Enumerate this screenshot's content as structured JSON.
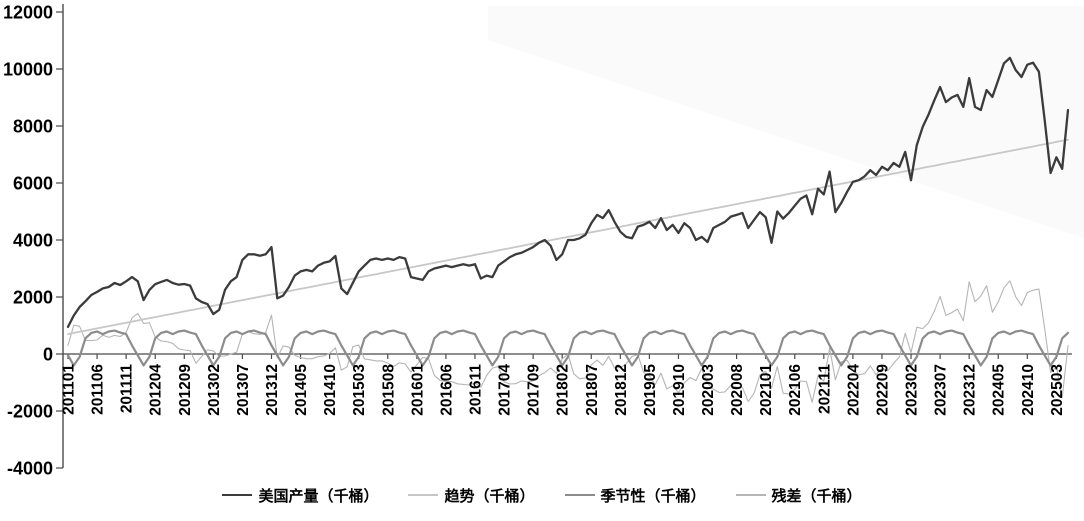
{
  "chart_data": {
    "type": "line",
    "title": "",
    "x_unit": "month (YYYYMM)",
    "x_start": "201101",
    "x_end": "202505",
    "points_count": 173,
    "x_tick_every_months": 5,
    "x_tick_labels": [
      "201101",
      "201106",
      "201111",
      "201204",
      "201209",
      "201302",
      "201307",
      "201312",
      "201405",
      "201410",
      "201503",
      "201508",
      "201601",
      "201606",
      "201611",
      "201704",
      "201709",
      "201802",
      "201807",
      "201812",
      "201905",
      "201910",
      "202003",
      "202008",
      "202101",
      "202106",
      "202111",
      "202204",
      "202209",
      "202302",
      "202307",
      "202312",
      "202405",
      "202410",
      "202503"
    ],
    "y_ticks": [
      12000,
      10000,
      8000,
      6000,
      4000,
      2000,
      0,
      -2000,
      -4000
    ],
    "ylim": [
      -4000,
      12000
    ],
    "grid": false,
    "legend_position": "bottom-center",
    "axis_color": "#4a4a4a",
    "tick_label_color": "#000000",
    "series": [
      {
        "id": "production",
        "name": "美国产量（千桶）",
        "color": "#3b3b3b",
        "width": 2.3,
        "values": [
          950,
          1350,
          1650,
          1850,
          2070,
          2180,
          2300,
          2350,
          2490,
          2420,
          2550,
          2700,
          2550,
          1890,
          2250,
          2450,
          2530,
          2600,
          2490,
          2430,
          2455,
          2400,
          1950,
          1825,
          1750,
          1400,
          1550,
          2250,
          2550,
          2700,
          3300,
          3500,
          3500,
          3450,
          3500,
          3750,
          1950,
          2050,
          2350,
          2750,
          2900,
          2950,
          2900,
          3100,
          3200,
          3250,
          3440,
          2300,
          2100,
          2500,
          2900,
          3100,
          3300,
          3350,
          3300,
          3350,
          3300,
          3400,
          3350,
          2700,
          2650,
          2600,
          2900,
          3000,
          3050,
          3100,
          3050,
          3100,
          3150,
          3100,
          3150,
          2650,
          2750,
          2700,
          3100,
          3250,
          3400,
          3500,
          3550,
          3650,
          3750,
          3900,
          4000,
          3800,
          3300,
          3500,
          4000,
          4000,
          4060,
          4180,
          4590,
          4880,
          4770,
          5050,
          4640,
          4290,
          4110,
          4060,
          4470,
          4530,
          4640,
          4420,
          4770,
          4350,
          4530,
          4250,
          4590,
          4420,
          4000,
          4110,
          3930,
          4420,
          4530,
          4640,
          4820,
          4880,
          4950,
          4420,
          4700,
          4980,
          4800,
          3900,
          5000,
          4750,
          4950,
          5200,
          5450,
          5560,
          4900,
          5800,
          5600,
          6400,
          4980,
          5300,
          5690,
          6040,
          6100,
          6230,
          6450,
          6280,
          6570,
          6450,
          6700,
          6570,
          7090,
          6100,
          7330,
          7970,
          8400,
          8900,
          9370,
          8840,
          9000,
          9090,
          8670,
          9680,
          8670,
          8560,
          9260,
          9020,
          9610,
          10200,
          10390,
          9960,
          9720,
          10150,
          10220,
          9900,
          8200,
          6350,
          6900,
          6500,
          8560
        ]
      },
      {
        "id": "trend",
        "name": "趋势（千桶）",
        "color": "#c7c7c7",
        "width": 1.8,
        "values": [
          700,
          740,
          779,
          819,
          859,
          898,
          938,
          978,
          1017,
          1057,
          1097,
          1136,
          1176,
          1216,
          1255,
          1295,
          1334,
          1374,
          1414,
          1453,
          1493,
          1533,
          1572,
          1612,
          1652,
          1691,
          1731,
          1771,
          1810,
          1850,
          1890,
          1929,
          1969,
          2008,
          2048,
          2088,
          2127,
          2167,
          2207,
          2246,
          2286,
          2326,
          2365,
          2405,
          2445,
          2484,
          2524,
          2564,
          2603,
          2643,
          2683,
          2722,
          2762,
          2801,
          2841,
          2881,
          2920,
          2960,
          3000,
          3039,
          3079,
          3119,
          3158,
          3198,
          3238,
          3277,
          3317,
          3357,
          3396,
          3436,
          3476,
          3515,
          3555,
          3594,
          3634,
          3674,
          3713,
          3753,
          3793,
          3832,
          3872,
          3912,
          3951,
          3991,
          4031,
          4070,
          4110,
          4150,
          4189,
          4229,
          4269,
          4308,
          4348,
          4387,
          4427,
          4467,
          4506,
          4546,
          4586,
          4625,
          4665,
          4705,
          4744,
          4784,
          4824,
          4863,
          4903,
          4943,
          4982,
          5022,
          5062,
          5101,
          5141,
          5180,
          5220,
          5260,
          5299,
          5339,
          5379,
          5418,
          5458,
          5498,
          5537,
          5577,
          5617,
          5656,
          5696,
          5736,
          5775,
          5815,
          5855,
          5894,
          5934,
          5973,
          6013,
          6053,
          6092,
          6132,
          6172,
          6211,
          6251,
          6291,
          6330,
          6370,
          6410,
          6449,
          6489,
          6529,
          6568,
          6608,
          6648,
          6687,
          6727,
          6766,
          6806,
          6846,
          6885,
          6925,
          6965,
          7004,
          7044,
          7084,
          7123,
          7163,
          7203,
          7242,
          7282,
          7322,
          7361,
          7401,
          7441,
          7480,
          7520
        ]
      },
      {
        "id": "seasonal",
        "name": "季节性（千桶）",
        "color": "#8c8c8c",
        "width": 2.2,
        "monthly_pattern": [
          -50,
          -400,
          -100,
          550,
          740,
          790,
          700,
          790,
          820,
          750,
          700,
          300
        ]
      },
      {
        "id": "residual",
        "name": "残差（千桶）",
        "color": "#b5b5b5",
        "width": 1.1,
        "values": [
          300,
          1010,
          971,
          481,
          471,
          492,
          662,
          582,
          653,
          613,
          753,
          1264,
          1424,
          1074,
          1095,
          605,
          456,
          436,
          376,
          187,
          142,
          117,
          -322,
          -87,
          148,
          109,
          -81,
          -71,
          0,
          60,
          710,
          781,
          711,
          692,
          752,
          1362,
          -127,
          283,
          243,
          -46,
          -126,
          -166,
          -165,
          -95,
          -65,
          16,
          216,
          -564,
          -453,
          257,
          317,
          -172,
          -202,
          -241,
          -241,
          -321,
          -440,
          -310,
          -350,
          -639,
          -379,
          -119,
          -158,
          -748,
          -928,
          -967,
          -967,
          -1047,
          -1066,
          -1086,
          -1026,
          -1165,
          -755,
          -494,
          -434,
          -974,
          -1053,
          -1043,
          -943,
          -972,
          -942,
          -762,
          -651,
          -491,
          -681,
          -170,
          -10,
          -700,
          -869,
          -839,
          -379,
          -218,
          -398,
          -87,
          -487,
          -477,
          -346,
          -86,
          -16,
          -645,
          -765,
          -1075,
          -674,
          -1224,
          -1114,
          -1363,
          -1013,
          -823,
          -932,
          -512,
          -1032,
          -1231,
          -1351,
          -1330,
          -1100,
          -1170,
          -1169,
          -1669,
          -1379,
          -738,
          -608,
          -1198,
          -437,
          -1377,
          -1407,
          -1246,
          -946,
          -966,
          -1695,
          -765,
          -955,
          206,
          -904,
          -273,
          -223,
          -563,
          -732,
          -692,
          -422,
          -721,
          -501,
          -591,
          -330,
          -100,
          730,
          51,
          941,
          891,
          1092,
          1502,
          2022,
          1363,
          1453,
          1574,
          1164,
          2534,
          1835,
          2035,
          2395,
          1466,
          1826,
          2326,
          2567,
          2007,
          1697,
          2158,
          2238,
          2278,
          889,
          -651,
          -441,
          -1530,
          300
        ]
      }
    ]
  },
  "legend": {
    "items": [
      {
        "label": "美国产量（千桶）"
      },
      {
        "label": "趋势（千桶）"
      },
      {
        "label": "季节性（千桶）"
      },
      {
        "label": "残差（千桶）"
      }
    ]
  }
}
